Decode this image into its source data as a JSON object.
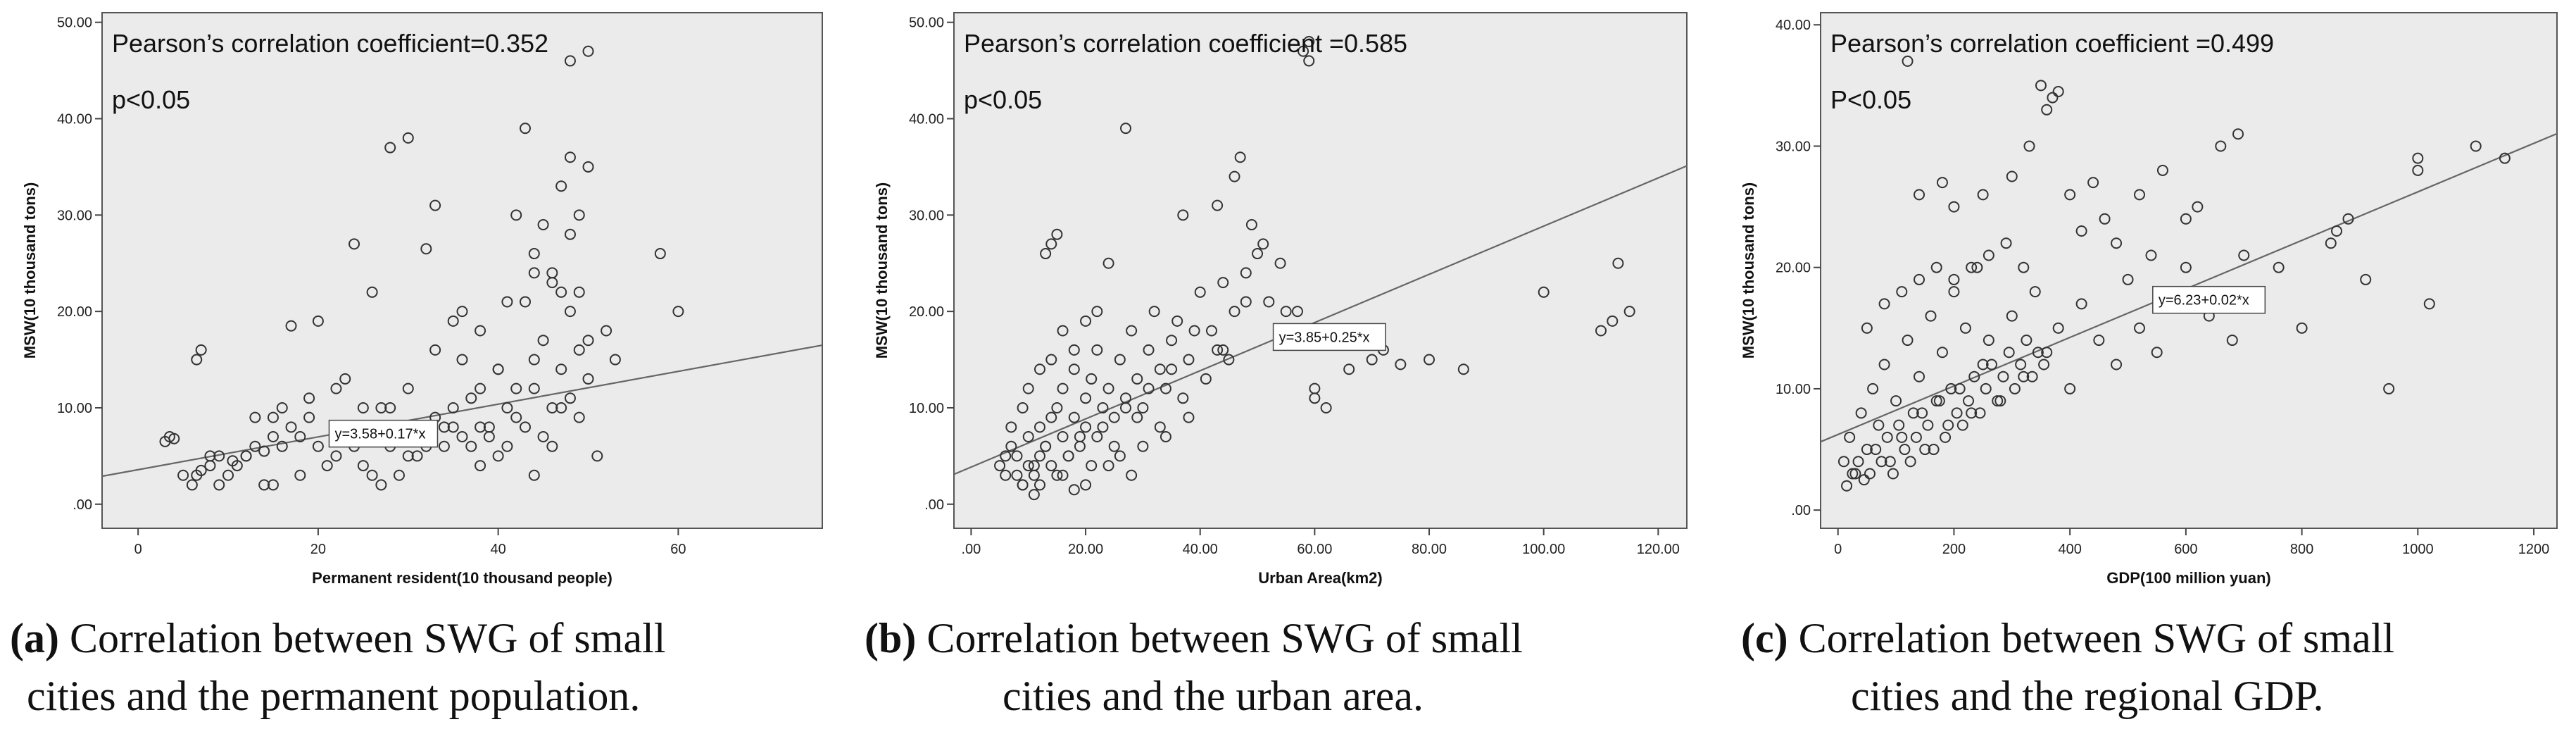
{
  "chart_data": [
    {
      "type": "scatter",
      "panel_label": "(a)",
      "caption_line1": "Correlation between SWG of small",
      "caption_line2": "cities and the permanent population.",
      "annotation_line1": "Pearson’s correlation coefficient=0.352",
      "annotation_line2": "p<0.05",
      "fit_label": "y=3.58+0.17*x",
      "fit": {
        "intercept": 3.58,
        "slope": 0.17
      },
      "xlabel": "Permanent resident(10 thousand people)",
      "ylabel": "MSW(10 thousand tons)",
      "xlim": [
        -4,
        76
      ],
      "ylim": [
        -2.5,
        51
      ],
      "xticks": [
        0,
        20,
        40,
        60
      ],
      "xtick_labels": [
        "0",
        "20",
        "40",
        "60"
      ],
      "yticks": [
        0,
        10,
        20,
        30,
        40,
        50
      ],
      "ytick_labels": [
        ".00",
        "10.00",
        "20.00",
        "30.00",
        "40.00",
        "50.00"
      ],
      "points": {
        "x": [
          3,
          3.5,
          4,
          6,
          6.5,
          7,
          8,
          9,
          10,
          10.5,
          12,
          13,
          14,
          15,
          16,
          17,
          18,
          19,
          20,
          22,
          23,
          25,
          26,
          27,
          28,
          29,
          30,
          31,
          32,
          33,
          34,
          35,
          36,
          37,
          38,
          39,
          40,
          41,
          42,
          43,
          44,
          45,
          46,
          47,
          48,
          49,
          50,
          50,
          49,
          48,
          46,
          44,
          43,
          52,
          53,
          58,
          60,
          6.5,
          7,
          17,
          24,
          32,
          33,
          36,
          38,
          40,
          44,
          47,
          48,
          49,
          50,
          45,
          48,
          42,
          30,
          28,
          26,
          20,
          22,
          25,
          35,
          37,
          40,
          45,
          47,
          44,
          41,
          39,
          38,
          31,
          29,
          27,
          24,
          21,
          18,
          15,
          12,
          9,
          11,
          13,
          16,
          19,
          23,
          27,
          30,
          33,
          35,
          43,
          46,
          49,
          51,
          47,
          48,
          50,
          15,
          25,
          34,
          42,
          5,
          8,
          14,
          28,
          38,
          46,
          36,
          41,
          44
        ],
        "y": [
          6.5,
          7,
          6.8,
          2,
          3,
          3.5,
          4,
          5,
          3,
          4.5,
          5,
          6,
          5.5,
          7,
          6,
          8,
          7,
          9,
          6,
          5,
          8,
          4,
          3,
          7,
          6,
          8,
          5,
          7,
          6,
          9,
          8,
          10,
          7,
          6,
          12,
          8,
          5,
          10,
          9,
          8,
          12,
          7,
          10,
          14,
          11,
          9,
          13,
          17,
          16,
          20,
          24,
          26,
          39,
          18,
          15,
          26,
          20,
          15,
          16,
          18.5,
          27,
          26.5,
          31,
          20,
          18,
          14,
          15,
          10,
          28,
          30,
          35,
          29,
          36,
          30,
          38,
          37,
          22,
          19,
          12,
          10,
          8,
          11,
          14,
          17,
          22,
          24,
          6,
          7,
          4,
          5,
          3,
          2,
          6,
          4,
          3,
          2,
          5,
          2,
          4,
          9,
          10,
          11,
          13,
          10,
          12,
          16,
          19,
          21,
          23,
          22,
          5,
          33,
          46,
          47,
          9,
          7,
          6,
          12,
          3,
          5,
          2,
          10,
          8,
          6,
          15,
          21,
          3
        ]
      }
    },
    {
      "type": "scatter",
      "panel_label": "(b)",
      "caption_line1": "Correlation between SWG of small",
      "caption_line2": "cities and the urban area.",
      "annotation_line1": "Pearson’s correlation coefficient =0.585",
      "annotation_line2": "p<0.05",
      "fit_label": "y=3.85+0.25*x",
      "fit": {
        "intercept": 3.85,
        "slope": 0.25
      },
      "xlabel": "Urban Area(km2)",
      "ylabel": "MSW(10 thousand tons)",
      "xlim": [
        -3,
        125
      ],
      "ylim": [
        -2.5,
        51
      ],
      "xticks": [
        0,
        20,
        40,
        60,
        80,
        100,
        120
      ],
      "xtick_labels": [
        ".00",
        "20.00",
        "40.00",
        "60.00",
        "80.00",
        "100.00",
        "120.00"
      ],
      "yticks": [
        0,
        10,
        20,
        30,
        40,
        50
      ],
      "ytick_labels": [
        ".00",
        "10.00",
        "20.00",
        "30.00",
        "40.00",
        "50.00"
      ],
      "points": {
        "x": [
          5,
          6,
          7,
          8,
          9,
          10,
          10,
          11,
          12,
          12,
          13,
          14,
          14,
          15,
          16,
          16,
          17,
          18,
          18,
          19,
          20,
          20,
          21,
          22,
          22,
          23,
          24,
          25,
          26,
          27,
          28,
          29,
          30,
          31,
          32,
          33,
          34,
          35,
          36,
          38,
          40,
          42,
          44,
          46,
          48,
          50,
          52,
          55,
          58,
          59,
          59,
          60,
          60,
          62,
          66,
          70,
          72,
          75,
          80,
          86,
          100,
          110,
          112,
          113,
          115,
          13,
          14,
          15,
          24,
          27,
          37,
          43,
          46,
          47,
          49,
          51,
          54,
          57,
          6,
          8,
          9,
          11,
          13,
          15,
          17,
          19,
          21,
          23,
          25,
          27,
          29,
          31,
          33,
          35,
          37,
          39,
          41,
          43,
          45,
          11,
          12,
          16,
          18,
          20,
          24,
          26,
          28,
          30,
          34,
          38,
          7,
          9,
          10,
          12,
          14,
          16,
          18,
          20,
          22,
          44,
          48
        ],
        "y": [
          4,
          3,
          6,
          5,
          2,
          4,
          7,
          3,
          8,
          5,
          6,
          9,
          4,
          10,
          7,
          12,
          5,
          9,
          14,
          6,
          11,
          8,
          13,
          7,
          16,
          10,
          12,
          9,
          15,
          11,
          18,
          13,
          10,
          16,
          20,
          14,
          12,
          17,
          19,
          15,
          22,
          18,
          16,
          20,
          24,
          26,
          21,
          20,
          47,
          46,
          48,
          12,
          11,
          10,
          14,
          15,
          16,
          14.5,
          15,
          14,
          22,
          18,
          19,
          25,
          20,
          26,
          27,
          28,
          25,
          39,
          30,
          31,
          34,
          36,
          29,
          27,
          25,
          20,
          5,
          3,
          2,
          4,
          6,
          3,
          5,
          7,
          4,
          8,
          6,
          10,
          9,
          12,
          8,
          14,
          11,
          18,
          13,
          16,
          15,
          1,
          2,
          3,
          1.5,
          2,
          4,
          5,
          3,
          6,
          7,
          9,
          8,
          10,
          12,
          14,
          15,
          18,
          16,
          19,
          20,
          23,
          21
        ]
      }
    },
    {
      "type": "scatter",
      "panel_label": "(c)",
      "caption_line1": "Correlation between SWG of small",
      "caption_line2": "cities and the regional GDP.",
      "annotation_line1": "Pearson’s correlation coefficient =0.499",
      "annotation_line2": "P<0.05",
      "fit_label": "y=6.23+0.02*x",
      "fit": {
        "intercept": 6.23,
        "slope": 0.02
      },
      "xlabel": "GDP(100 million yuan)",
      "ylabel": "MSW(10 thousand tons)",
      "xlim": [
        -30,
        1240
      ],
      "ylim": [
        -1.5,
        41
      ],
      "xticks": [
        0,
        200,
        400,
        600,
        800,
        1000,
        1200
      ],
      "xtick_labels": [
        "0",
        "200",
        "400",
        "600",
        "800",
        "1000",
        "1200"
      ],
      "yticks": [
        0,
        10,
        20,
        30,
        40
      ],
      "ytick_labels": [
        ".00",
        "10.00",
        "20.00",
        "30.00",
        "40.00"
      ],
      "points": {
        "x": [
          10,
          20,
          30,
          40,
          50,
          60,
          70,
          80,
          90,
          100,
          110,
          120,
          130,
          140,
          150,
          160,
          170,
          180,
          190,
          200,
          210,
          220,
          230,
          240,
          250,
          260,
          280,
          300,
          320,
          340,
          360,
          380,
          400,
          420,
          450,
          480,
          500,
          520,
          550,
          580,
          600,
          640,
          680,
          700,
          720,
          760,
          800,
          850,
          880,
          950,
          1000,
          1000,
          1020,
          1100,
          1150,
          350,
          370,
          360,
          380,
          120,
          140,
          180,
          200,
          250,
          300,
          330,
          400,
          440,
          460,
          520,
          560,
          620,
          660,
          690,
          15,
          25,
          35,
          45,
          55,
          65,
          75,
          85,
          95,
          105,
          115,
          125,
          135,
          145,
          155,
          165,
          175,
          185,
          195,
          205,
          215,
          225,
          235,
          245,
          255,
          265,
          275,
          285,
          295,
          305,
          315,
          325,
          335,
          345,
          355,
          50,
          80,
          110,
          140,
          170,
          200,
          230,
          260,
          290,
          320,
          420,
          480,
          540,
          600,
          860,
          910
        ],
        "y": [
          4,
          6,
          3,
          8,
          5,
          10,
          7,
          12,
          4,
          9,
          6,
          14,
          8,
          11,
          5,
          16,
          9,
          13,
          7,
          18,
          10,
          15,
          8,
          20,
          12,
          14,
          9,
          16,
          11,
          18,
          13,
          15,
          10,
          17,
          14,
          12,
          19,
          15,
          13,
          18,
          20,
          16,
          14,
          21,
          17,
          20,
          15,
          22,
          24,
          10,
          29,
          28,
          17,
          30,
          29,
          35,
          34,
          33,
          34.5,
          37,
          26,
          27,
          25,
          26,
          27.5,
          30,
          26,
          27,
          24,
          26,
          28,
          25,
          30,
          31,
          2,
          3,
          4,
          2.5,
          3,
          5,
          4,
          6,
          3,
          7,
          5,
          4,
          6,
          8,
          7,
          5,
          9,
          6,
          10,
          8,
          7,
          9,
          11,
          8,
          10,
          12,
          9,
          11,
          13,
          10,
          12,
          14,
          11,
          13,
          12,
          15,
          17,
          18,
          19,
          20,
          19,
          20,
          21,
          22,
          20,
          23,
          22,
          21,
          24,
          23,
          19
        ]
      }
    }
  ]
}
